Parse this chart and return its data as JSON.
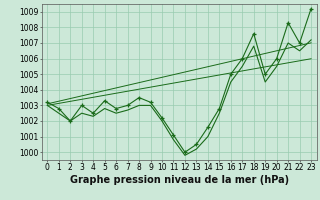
{
  "x": [
    0,
    1,
    2,
    3,
    4,
    5,
    6,
    7,
    8,
    9,
    10,
    11,
    12,
    13,
    14,
    15,
    16,
    17,
    18,
    19,
    20,
    21,
    22,
    23
  ],
  "y_main": [
    1003.2,
    1002.8,
    1002.0,
    1003.0,
    1002.5,
    1003.3,
    1002.8,
    1003.0,
    1003.5,
    1003.2,
    1002.2,
    1001.1,
    1000.0,
    1000.5,
    1001.6,
    1002.8,
    1005.0,
    1006.0,
    1007.6,
    1005.0,
    1006.0,
    1008.3,
    1007.0,
    1009.2
  ],
  "y_low": [
    1003.0,
    1002.5,
    1002.0,
    1002.5,
    1002.3,
    1002.8,
    1002.5,
    1002.7,
    1003.0,
    1003.0,
    1002.0,
    1000.8,
    999.8,
    1000.2,
    1001.0,
    1002.5,
    1004.5,
    1005.5,
    1006.8,
    1004.5,
    1005.5,
    1007.0,
    1006.5,
    1007.2
  ],
  "y_trend1": [
    1003.0,
    1003.13,
    1003.26,
    1003.39,
    1003.52,
    1003.65,
    1003.78,
    1003.91,
    1004.04,
    1004.17,
    1004.3,
    1004.43,
    1004.56,
    1004.69,
    1004.82,
    1004.95,
    1005.08,
    1005.21,
    1005.34,
    1005.47,
    1005.6,
    1005.73,
    1005.86,
    1005.99
  ],
  "y_trend2": [
    1003.1,
    1003.27,
    1003.44,
    1003.61,
    1003.78,
    1003.95,
    1004.12,
    1004.29,
    1004.46,
    1004.63,
    1004.8,
    1004.97,
    1005.14,
    1005.31,
    1005.48,
    1005.65,
    1005.82,
    1005.99,
    1006.16,
    1006.33,
    1006.5,
    1006.67,
    1006.84,
    1007.01
  ],
  "ylim": [
    999.5,
    1009.5
  ],
  "yticks": [
    1000,
    1001,
    1002,
    1003,
    1004,
    1005,
    1006,
    1007,
    1008,
    1009
  ],
  "xticks": [
    0,
    1,
    2,
    3,
    4,
    5,
    6,
    7,
    8,
    9,
    10,
    11,
    12,
    13,
    14,
    15,
    16,
    17,
    18,
    19,
    20,
    21,
    22,
    23
  ],
  "xlabel": "Graphe pression niveau de la mer (hPa)",
  "line_color": "#1a6b1a",
  "bg_color": "#cce8d8",
  "grid_color": "#99ccb0",
  "tick_fontsize": 5.5,
  "label_fontsize": 7.0
}
